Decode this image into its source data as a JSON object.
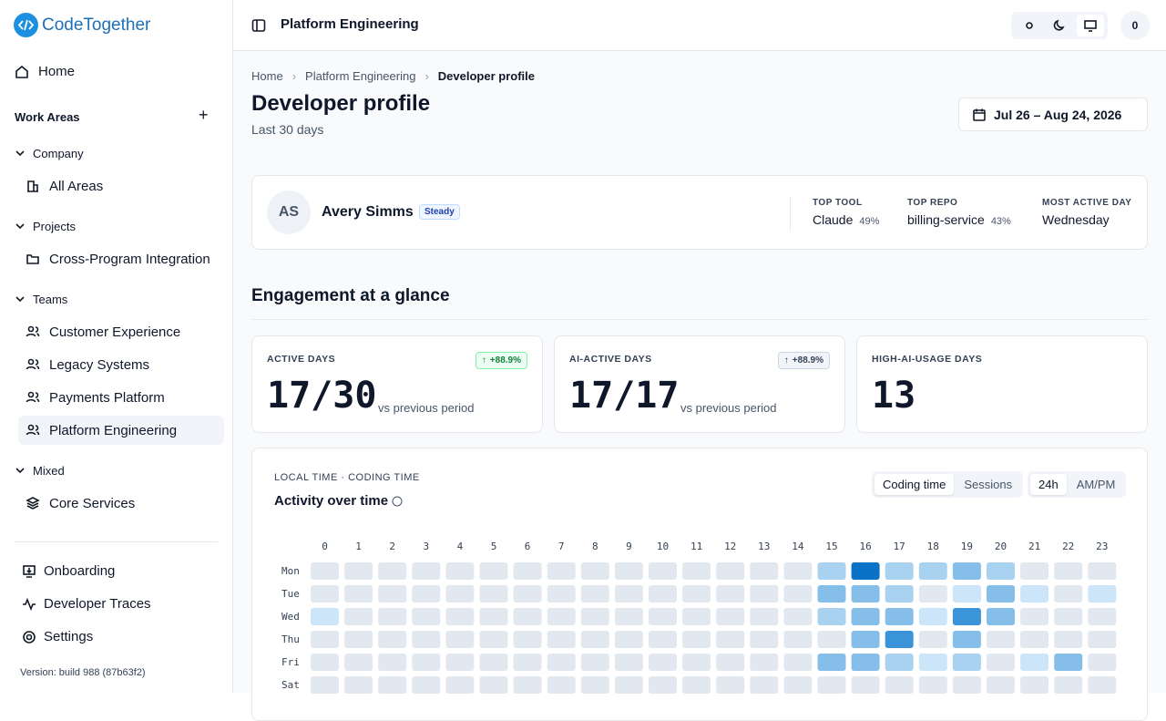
{
  "sidebar": {
    "brand": "CodeTogether",
    "home": "Home",
    "work_areas": "Work Areas",
    "groups": [
      {
        "label": "Company",
        "items": [
          "All Areas"
        ]
      },
      {
        "label": "Projects",
        "items": [
          "Cross-Program Integration"
        ]
      },
      {
        "label": "Teams",
        "items": [
          "Customer Experience",
          "Legacy Systems",
          "Payments Platform",
          "Platform Engineering"
        ]
      },
      {
        "label": "Mixed",
        "items": [
          "Core Services"
        ]
      }
    ],
    "footer_links": [
      "Onboarding",
      "Developer Traces",
      "Settings"
    ],
    "version": "Version: build 988 (87b63f2)"
  },
  "topbar": {
    "title": "Platform Engineering",
    "user_badge": "0"
  },
  "breadcrumb": [
    "Home",
    "Platform Engineering",
    "Developer profile"
  ],
  "page": {
    "title": "Developer profile",
    "subtitle": "Last 30 days",
    "date_range": "Jul 26 – Aug 24, 2026"
  },
  "profile": {
    "initials": "AS",
    "name": "Avery Simms",
    "badge": "Steady",
    "stats": [
      {
        "label": "TOP TOOL",
        "value": "Claude",
        "share": "49%"
      },
      {
        "label": "TOP REPO",
        "value": "billing-service",
        "share": "43%"
      },
      {
        "label": "MOST ACTIVE DAY",
        "value": "Wednesday"
      }
    ]
  },
  "engagement": {
    "title": "Engagement at a glance",
    "cards": [
      {
        "label": "ACTIVE DAYS",
        "value": "17/30",
        "delta": "+88.9%",
        "caption": "vs previous period"
      },
      {
        "label": "AI-ACTIVE DAYS",
        "value": "17/17",
        "delta": "+88.9%",
        "caption": "vs previous period"
      },
      {
        "label": "HIGH-AI-USAGE DAYS",
        "value": "13"
      }
    ]
  },
  "activity": {
    "eyebrow": "LOCAL TIME · CODING TIME",
    "title": "Activity over time",
    "metric_toggle": [
      "Coding time",
      "Sessions"
    ],
    "clock_toggle": [
      "24h",
      "AM/PM"
    ],
    "hours": [
      0,
      1,
      2,
      3,
      4,
      5,
      6,
      7,
      8,
      9,
      10,
      11,
      12,
      13,
      14,
      15,
      16,
      17,
      18,
      19,
      20,
      21,
      22,
      23
    ],
    "days": [
      "Mon",
      "Tue",
      "Wed",
      "Thu",
      "Fri",
      "Sat"
    ],
    "colors": [
      "#e2e8f0",
      "#cde5f8",
      "#a9d2f1",
      "#85bfe9",
      "#3b93d8",
      "#0a72c7"
    ],
    "levels": [
      [
        0,
        0,
        0,
        0,
        0,
        0,
        0,
        0,
        0,
        0,
        0,
        0,
        0,
        0,
        0,
        2,
        5,
        2,
        2,
        3,
        2,
        0,
        0,
        0
      ],
      [
        0,
        0,
        0,
        0,
        0,
        0,
        0,
        0,
        0,
        0,
        0,
        0,
        0,
        0,
        0,
        3,
        3,
        2,
        0,
        1,
        3,
        1,
        0,
        1
      ],
      [
        1,
        0,
        0,
        0,
        0,
        0,
        0,
        0,
        0,
        0,
        0,
        0,
        0,
        0,
        0,
        2,
        3,
        3,
        1,
        4,
        3,
        0,
        0,
        0
      ],
      [
        0,
        0,
        0,
        0,
        0,
        0,
        0,
        0,
        0,
        0,
        0,
        0,
        0,
        0,
        0,
        0,
        3,
        4,
        0,
        3,
        0,
        0,
        0,
        0
      ],
      [
        0,
        0,
        0,
        0,
        0,
        0,
        0,
        0,
        0,
        0,
        0,
        0,
        0,
        0,
        0,
        3,
        3,
        2,
        1,
        2,
        0,
        1,
        3,
        0
      ],
      [
        0,
        0,
        0,
        0,
        0,
        0,
        0,
        0,
        0,
        0,
        0,
        0,
        0,
        0,
        0,
        0,
        0,
        0,
        0,
        0,
        0,
        0,
        0,
        0
      ]
    ]
  }
}
